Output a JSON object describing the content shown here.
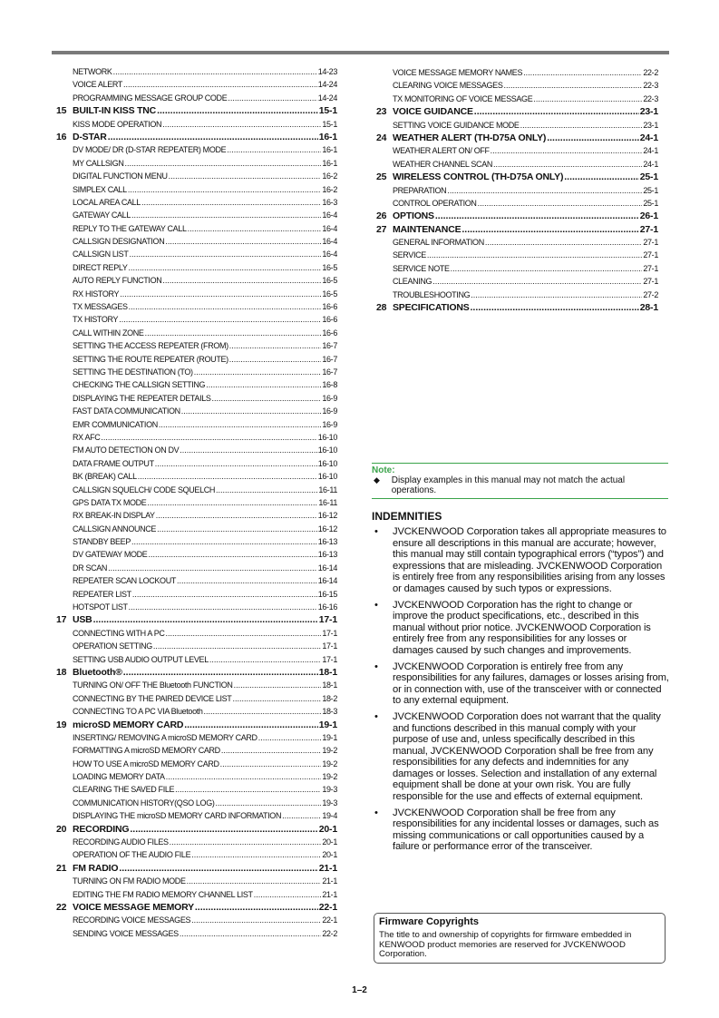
{
  "toc_left": [
    {
      "type": "sub",
      "title": "NETWORK",
      "page": "14-23"
    },
    {
      "type": "sub",
      "title": "VOICE ALERT",
      "page": "14-24"
    },
    {
      "type": "sub",
      "title": "PROGRAMMING MESSAGE GROUP CODE",
      "page": "14-24"
    },
    {
      "type": "head",
      "num": "15",
      "title": "BUILT-IN  KISS TNC",
      "page": "15-1"
    },
    {
      "type": "sub",
      "title": "KISS MODE OPERATION",
      "page": "15-1"
    },
    {
      "type": "head",
      "num": "16",
      "title": "D-STAR",
      "page": "16-1"
    },
    {
      "type": "sub",
      "title": "DV MODE/ DR (D-STAR REPEATER) MODE",
      "page": "16-1"
    },
    {
      "type": "sub",
      "title": "MY CALLSIGN",
      "page": "16-1"
    },
    {
      "type": "sub",
      "title": "DIGITAL FUNCTION MENU",
      "page": "16-2"
    },
    {
      "type": "sub",
      "title": "SIMPLEX CALL",
      "page": "16-2"
    },
    {
      "type": "sub",
      "title": "LOCAL AREA CALL",
      "page": "16-3"
    },
    {
      "type": "sub",
      "title": "GATEWAY CALL",
      "page": "16-4"
    },
    {
      "type": "sub",
      "title": "REPLY TO THE GATEWAY CALL",
      "page": "16-4"
    },
    {
      "type": "sub",
      "title": "CALLSIGN DESIGNATION",
      "page": "16-4"
    },
    {
      "type": "sub",
      "title": "CALLSIGN LIST",
      "page": "16-4"
    },
    {
      "type": "sub",
      "title": "DIRECT REPLY",
      "page": "16-5"
    },
    {
      "type": "sub",
      "title": "AUTO REPLY FUNCTION",
      "page": "16-5"
    },
    {
      "type": "sub",
      "title": "RX HISTORY",
      "page": "16-5"
    },
    {
      "type": "sub",
      "title": "TX MESSAGES",
      "page": "16-6"
    },
    {
      "type": "sub",
      "title": "TX HISTORY",
      "page": "16-6"
    },
    {
      "type": "sub",
      "title": "CALL WITHIN ZONE",
      "page": "16-6"
    },
    {
      "type": "sub",
      "title": "SETTING THE ACCESS REPEATER (FROM)",
      "page": "16-7"
    },
    {
      "type": "sub",
      "title": "SETTING THE ROUTE REPEATER (ROUTE)",
      "page": "16-7"
    },
    {
      "type": "sub",
      "title": "SETTING THE DESTINATION (TO)",
      "page": "16-7"
    },
    {
      "type": "sub",
      "title": "CHECKING THE CALLSIGN SETTING",
      "page": "16-8"
    },
    {
      "type": "sub",
      "title": "DISPLAYING THE REPEATER DETAILS",
      "page": "16-9"
    },
    {
      "type": "sub",
      "title": "FAST DATA COMMUNICATION",
      "page": "16-9"
    },
    {
      "type": "sub",
      "title": "EMR COMMUNICATION",
      "page": "16-9"
    },
    {
      "type": "sub",
      "title": "RX AFC",
      "page": "16-10"
    },
    {
      "type": "sub",
      "title": "FM AUTO DETECTION ON DV",
      "page": "16-10"
    },
    {
      "type": "sub",
      "title": "DATA FRAME OUTPUT",
      "page": "16-10"
    },
    {
      "type": "sub",
      "title": "BK (BREAK) CALL",
      "page": "16-10"
    },
    {
      "type": "sub",
      "title": "CALLSIGN SQUELCH/ CODE SQUELCH",
      "page": "16-11"
    },
    {
      "type": "sub",
      "title": "GPS DATA TX MODE",
      "page": "16-11"
    },
    {
      "type": "sub",
      "title": "RX BREAK-IN DISPLAY",
      "page": "16-12"
    },
    {
      "type": "sub",
      "title": "CALLSIGN ANNOUNCE",
      "page": "16-12"
    },
    {
      "type": "sub",
      "title": "STANDBY BEEP",
      "page": "16-13"
    },
    {
      "type": "sub",
      "title": "DV GATEWAY MODE",
      "page": "16-13"
    },
    {
      "type": "sub",
      "title": "DR SCAN",
      "page": "16-14"
    },
    {
      "type": "sub",
      "title": "REPEATER SCAN LOCKOUT",
      "page": "16-14"
    },
    {
      "type": "sub",
      "title": "REPEATER LIST",
      "page": "16-15"
    },
    {
      "type": "sub",
      "title": "HOTSPOT LIST",
      "page": "16-16"
    },
    {
      "type": "head",
      "num": "17",
      "title": "USB",
      "page": "17-1"
    },
    {
      "type": "sub",
      "title": "CONNECTING WITH A PC",
      "page": "17-1"
    },
    {
      "type": "sub",
      "title": "OPERATION SETTING",
      "page": "17-1"
    },
    {
      "type": "sub",
      "title": "SETTING USB AUDIO OUTPUT LEVEL",
      "page": "17-1"
    },
    {
      "type": "head",
      "num": "18",
      "title": "Bluetooth®",
      "page": "18-1"
    },
    {
      "type": "sub",
      "title": "TURNING ON/ OFF THE Bluetooth FUNCTION",
      "page": "18-1"
    },
    {
      "type": "sub",
      "title": "CONNECTING BY THE PAIRED DEVICE LIST",
      "page": "18-2"
    },
    {
      "type": "sub",
      "title": "CONNECTING TO A PC VIA Bluetooth",
      "page": "18-3"
    },
    {
      "type": "head",
      "num": "19",
      "title": "microSD MEMORY CARD",
      "page": "19-1"
    },
    {
      "type": "sub",
      "title": "INSERTING/ REMOVING A microSD MEMORY CARD",
      "page": "19-1"
    },
    {
      "type": "sub",
      "title": "FORMATTING A microSD MEMORY CARD",
      "page": "19-2"
    },
    {
      "type": "sub",
      "title": "HOW TO USE A microSD MEMORY CARD",
      "page": "19-2"
    },
    {
      "type": "sub",
      "title": "LOADING MEMORY DATA",
      "page": "19-2"
    },
    {
      "type": "sub",
      "title": "CLEARING THE SAVED FILE",
      "page": "19-3"
    },
    {
      "type": "sub",
      "title": "COMMUNICATION HISTORY(QSO LOG)",
      "page": "19-3"
    },
    {
      "type": "sub",
      "title": "DISPLAYING THE microSD MEMORY CARD INFORMATION",
      "page": "19-4"
    },
    {
      "type": "head",
      "num": "20",
      "title": "RECORDING",
      "page": "20-1"
    },
    {
      "type": "sub",
      "title": "RECORDING AUDIO FILES",
      "page": "20-1"
    },
    {
      "type": "sub",
      "title": "OPERATION OF THE AUDIO FILE",
      "page": "20-1"
    },
    {
      "type": "head",
      "num": "21",
      "title": "FM RADIO",
      "page": "21-1"
    },
    {
      "type": "sub",
      "title": "TURNING ON FM RADIO MODE",
      "page": "21-1"
    },
    {
      "type": "sub",
      "title": "EDITING THE FM RADIO MEMORY CHANNEL LIST",
      "page": "21-1"
    },
    {
      "type": "head",
      "num": "22",
      "title": "VOICE MESSAGE MEMORY",
      "page": "22-1"
    },
    {
      "type": "sub",
      "title": "RECORDING VOICE MESSAGES",
      "page": "22-1"
    },
    {
      "type": "sub",
      "title": "SENDING VOICE MESSAGES",
      "page": "22-2"
    }
  ],
  "toc_right": [
    {
      "type": "sub",
      "title": "VOICE MESSAGE MEMORY NAMES",
      "page": "22-2"
    },
    {
      "type": "sub",
      "title": "CLEARING VOICE MESSAGES",
      "page": "22-3"
    },
    {
      "type": "sub",
      "title": "TX MONITORING OF VOICE MESSAGE",
      "page": "22-3"
    },
    {
      "type": "head",
      "num": "23",
      "title": "VOICE GUIDANCE",
      "page": "23-1"
    },
    {
      "type": "sub",
      "title": "SETTING VOICE GUIDANCE MODE",
      "page": "23-1"
    },
    {
      "type": "head",
      "num": "24",
      "title": "WEATHER ALERT (TH-D75A ONLY)",
      "page": "24-1"
    },
    {
      "type": "sub",
      "title": "WEATHER ALERT ON/ OFF",
      "page": "24-1"
    },
    {
      "type": "sub",
      "title": "WEATHER CHANNEL SCAN",
      "page": "24-1"
    },
    {
      "type": "head",
      "num": "25",
      "title": "WIRELESS CONTROL (TH-D75A ONLY)",
      "page": "25-1"
    },
    {
      "type": "sub",
      "title": "PREPARATION",
      "page": "25-1"
    },
    {
      "type": "sub",
      "title": "CONTROL OPERATION",
      "page": "25-1"
    },
    {
      "type": "head",
      "num": "26",
      "title": "OPTIONS",
      "page": "26-1"
    },
    {
      "type": "head",
      "num": "27",
      "title": "MAINTENANCE",
      "page": "27-1"
    },
    {
      "type": "sub",
      "title": "GENERAL INFORMATION",
      "page": "27-1"
    },
    {
      "type": "sub",
      "title": "SERVICE",
      "page": "27-1"
    },
    {
      "type": "sub",
      "title": "SERVICE NOTE",
      "page": "27-1"
    },
    {
      "type": "sub",
      "title": "CLEANING",
      "page": "27-1"
    },
    {
      "type": "sub",
      "title": "TROUBLESHOOTING",
      "page": "27-2"
    },
    {
      "type": "head",
      "num": "28",
      "title": "SPECIFICATIONS",
      "page": "28-1"
    }
  ],
  "note": {
    "label": "Note:",
    "bullet": "◆",
    "text": "Display examples in this manual may not match the actual operations.",
    "accent_color": "#3aa34a"
  },
  "indemnities": {
    "title": "INDEMNITIES",
    "bullet": "•",
    "items": [
      "JVCKENWOOD Corporation takes all appropriate measures to ensure all descriptions in this manual are accurate; however, this manual may still contain typographical errors (“typos”) and expressions that are misleading. JVCKENWOOD Corporation is entirely free from any responsibilities arising from any losses or damages caused by such typos or expressions.",
      "JVCKENWOOD Corporation has the right to change or improve the product specifications, etc., described in this manual without prior notice. JVCKENWOOD Corporation is entirely free from any responsibilities for any losses or damages caused by such changes and improvements.",
      "JVCKENWOOD Corporation is entirely free from any responsibilities for any failures, damages or losses arising from, or in connection with, use of the transceiver with or connected to any external equipment.",
      "JVCKENWOOD Corporation does not warrant that the quality and functions described in this manual comply with your purpose of use and, unless specifically described in this manual, JVCKENWOOD Corporation shall be free from any responsibilities for any defects and indemnities for any damages or losses. Selection and installation of any external equipment shall be done at your own risk. You are fully responsible for the use and effects of external equipment.",
      "JVCKENWOOD Corporation shall be free from any responsibilities for any incidental losses or damages, such as missing communications or call opportunities caused by a failure or performance error of the transceiver."
    ]
  },
  "firmware": {
    "title": "Firmware Copyrights",
    "text": "The title to and ownership of copyrights for firmware embedded in KENWOOD product memories are reserved for JVCKENWOOD Corporation."
  },
  "page_number": "1–2"
}
